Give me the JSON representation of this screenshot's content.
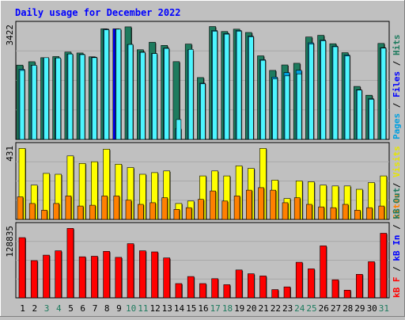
{
  "chart_data": {
    "type": "bar",
    "title": "Daily usage for December 2022",
    "categories": [
      "1",
      "2",
      "3",
      "4",
      "5",
      "6",
      "7",
      "8",
      "9",
      "10",
      "11",
      "12",
      "13",
      "14",
      "15",
      "16",
      "17",
      "18",
      "19",
      "20",
      "21",
      "22",
      "23",
      "24",
      "25",
      "26",
      "27",
      "28",
      "29",
      "30",
      "31"
    ],
    "weekend_days": [
      "3",
      "4",
      "10",
      "11",
      "17",
      "18",
      "24",
      "25",
      "31"
    ],
    "highlight_day": "9",
    "panels": [
      {
        "id": "top",
        "max_label": "3422",
        "ylim": [
          0,
          3422
        ],
        "series": [
          {
            "name": "Hits",
            "color": "#1e7b5e",
            "values": [
              2245,
              2348,
              2470,
              2503,
              2640,
              2610,
              2495,
              3340,
              3340,
              3400,
              2710,
              2935,
              2840,
              2350,
              2880,
              1870,
              3410,
              3260,
              3330,
              3230,
              2525,
              2085,
              2250,
              2300,
              3095,
              3145,
              2890,
              2620,
              1600,
              1335,
              2900
            ]
          },
          {
            "name": "Files",
            "color": "#00a0e0",
            "values": [
              2120,
              2240,
              2470,
              2460,
              2580,
              2570,
              2485,
              3330,
              3330,
              2870,
              2640,
              2595,
              2760,
              330,
              2700,
              1700,
              3290,
              3200,
              3290,
              3120,
              2410,
              1880,
              2020,
              2090,
              2920,
              3000,
              2820,
              2550,
              1500,
              1230,
              2770
            ]
          },
          {
            "name": "Pages",
            "color": "#4df5ff",
            "values": [
              2085,
              2240,
              2470,
              2460,
              2580,
              2560,
              2470,
              3310,
              3330,
              2870,
              2630,
              2595,
              2750,
              600,
              2720,
              1680,
              3270,
              3180,
              3270,
              3100,
              2390,
              1830,
              1920,
              1980,
              2880,
              2980,
              2800,
              2520,
              1490,
              1210,
              2760
            ]
          }
        ]
      },
      {
        "id": "middle",
        "max_label": "431",
        "ylim": [
          0,
          431
        ],
        "series": [
          {
            "name": "Visits",
            "color": "#ffff00",
            "values": [
              425,
              205,
              275,
              270,
              380,
              335,
              345,
              420,
              330,
              310,
              270,
              280,
              290,
              95,
              110,
              260,
              290,
              260,
              320,
              305,
              425,
              235,
              125,
              230,
              225,
              205,
              200,
              200,
              180,
              220,
              260
            ]
          },
          {
            "name": "Sites",
            "color": "#ff8000",
            "values": [
              135,
              95,
              55,
              95,
              140,
              80,
              85,
              140,
              140,
              115,
              90,
              100,
              130,
              60,
              70,
              120,
              170,
              110,
              140,
              175,
              190,
              175,
              100,
              130,
              90,
              75,
              70,
              90,
              55,
              70,
              80
            ]
          }
        ]
      },
      {
        "id": "bottom",
        "max_label": "128835",
        "ylim": [
          0,
          128835
        ],
        "series": [
          {
            "name": "KBytes",
            "color": "#ff0000",
            "values": [
              110000,
              68000,
              78000,
              86000,
              127000,
              75000,
              76000,
              85000,
              74000,
              99000,
              86000,
              84000,
              73000,
              26000,
              39000,
              26000,
              35000,
              24000,
              51000,
              44000,
              40000,
              15000,
              20000,
              65000,
              53000,
              95000,
              33000,
              14000,
              43000,
              66000,
              118000
            ]
          }
        ]
      }
    ],
    "legends": [
      {
        "panel": "top",
        "labels": [
          {
            "text": "Pages",
            "color": "#00a0e0"
          },
          {
            "text": "Files",
            "color": "#0000ff"
          },
          {
            "text": "Hits",
            "color": "#1e7b5e"
          }
        ]
      },
      {
        "panel": "middle",
        "labels": [
          {
            "text": "Sites",
            "color": "#ff8000"
          },
          {
            "text": "Visits",
            "color": "#e6e600"
          }
        ]
      },
      {
        "panel": "bottom",
        "labels": [
          {
            "text": "kB F",
            "color": "#ff0000"
          },
          {
            "text": "kB In",
            "color": "#0000ff"
          },
          {
            "text": "kB Out",
            "color": "#1e7b5e"
          }
        ]
      }
    ],
    "colors": {
      "background": "#c0c0c0",
      "title": "#0000ff",
      "axis_text": "#000000",
      "weekend_text": "#1e7b5e",
      "highlight": "#0000ff",
      "separator": "#000000"
    },
    "grid": true
  }
}
